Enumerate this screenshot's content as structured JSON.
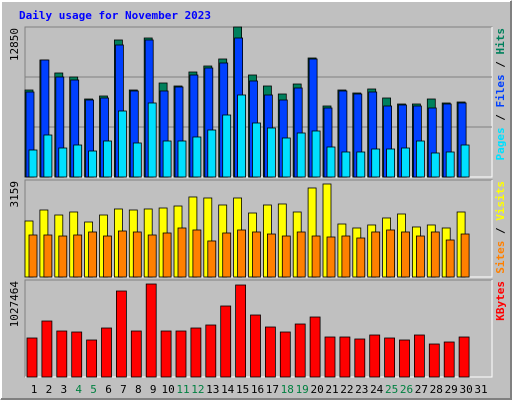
{
  "chart_data": {
    "type": "bar",
    "title": "Daily usage for November 2023",
    "categories": [
      "1",
      "2",
      "3",
      "4",
      "5",
      "6",
      "7",
      "8",
      "9",
      "10",
      "11",
      "12",
      "13",
      "14",
      "15",
      "16",
      "17",
      "18",
      "19",
      "20",
      "21",
      "22",
      "23",
      "24",
      "25",
      "26",
      "27",
      "28",
      "29",
      "30",
      "31"
    ],
    "category_colors": [
      "#000000",
      "#000000",
      "#000000",
      "#008040",
      "#008040",
      "#000000",
      "#000000",
      "#000000",
      "#000000",
      "#000000",
      "#008040",
      "#008040",
      "#000000",
      "#000000",
      "#000000",
      "#000000",
      "#000000",
      "#008040",
      "#008040",
      "#000000",
      "#000000",
      "#000000",
      "#000000",
      "#000000",
      "#008040",
      "#008040",
      "#000000",
      "#000000",
      "#000000",
      "#000000",
      "#000000"
    ],
    "legend_separator": " / ",
    "panels": [
      {
        "ylim": [
          0,
          12850
        ],
        "yticks": [
          12850
        ],
        "series": [
          {
            "name": "Hits",
            "color": "#00805c",
            "values": [
              7453,
              10023,
              8910,
              8567,
              6682,
              6939,
              11737,
              7453,
              11908,
              8053,
              7796,
              8995,
              9509,
              10109,
              12850,
              8738,
              7796,
              7111,
              7967,
              10195,
              6083,
              7453,
              7196,
              7539,
              6768,
              6254,
              6254,
              6682,
              6340,
              6425,
              null
            ]
          },
          {
            "name": "Files",
            "color": "#0040ff",
            "values": [
              7282,
              10023,
              8567,
              8310,
              6596,
              6768,
              11308,
              7368,
              11737,
              7368,
              7710,
              8738,
              9338,
              9766,
              11908,
              8224,
              7025,
              6596,
              7625,
              10109,
              5911,
              7368,
              7111,
              7282,
              6083,
              6168,
              6083,
              5911,
              6254,
              6340,
              null
            ]
          },
          {
            "name": "Pages",
            "color": "#00e0ff",
            "values": [
              2313,
              3598,
              2484,
              2741,
              2227,
              3084,
              5654,
              2913,
              6340,
              3084,
              3084,
              3427,
              4026,
              5311,
              7025,
              4626,
              4198,
              3341,
              3769,
              3941,
              2570,
              2142,
              2142,
              2399,
              2399,
              2484,
              3084,
              2056,
              2142,
              2741,
              null
            ]
          }
        ]
      },
      {
        "ylim": [
          0,
          3159
        ],
        "yticks": [
          3159
        ],
        "series": [
          {
            "name": "Visits",
            "color": "#ffff00",
            "values": [
              1824,
              2182,
              2019,
              2117,
              1791,
              2019,
              2215,
              2182,
              2215,
              2247,
              2312,
              2606,
              2573,
              2345,
              2573,
              2084,
              2345,
              2378,
              2117,
              2899,
              3029,
              1726,
              1596,
              1694,
              1922,
              2052,
              1629,
              1694,
              1596,
              2117,
              null
            ]
          },
          {
            "name": "Sites",
            "color": "#ff8000",
            "values": [
              1368,
              1368,
              1335,
              1368,
              1466,
              1335,
              1498,
              1466,
              1368,
              1433,
              1596,
              1531,
              1173,
              1433,
              1531,
              1466,
              1400,
              1335,
              1466,
              1335,
              1303,
              1335,
              1270,
              1466,
              1531,
              1466,
              1335,
              1466,
              1205,
              1400,
              null
            ]
          }
        ]
      },
      {
        "ylim": [
          0,
          1027464
        ],
        "yticks": [
          1027464
        ],
        "series": [
          {
            "name": "KBytes",
            "color": "#ff0000",
            "values": [
              413088,
              593152,
              487232,
              476640,
              391904,
              519008,
              910912,
              487232,
              985056,
              487232,
              487232,
              519008,
              550784,
              752032,
              974464,
              656704,
              529600,
              476640,
              561376,
              635520,
              423680,
              423680,
              402496,
              444864,
              413088,
              391904,
              444864,
              349536,
              370720,
              423680,
              null
            ]
          }
        ]
      }
    ]
  }
}
